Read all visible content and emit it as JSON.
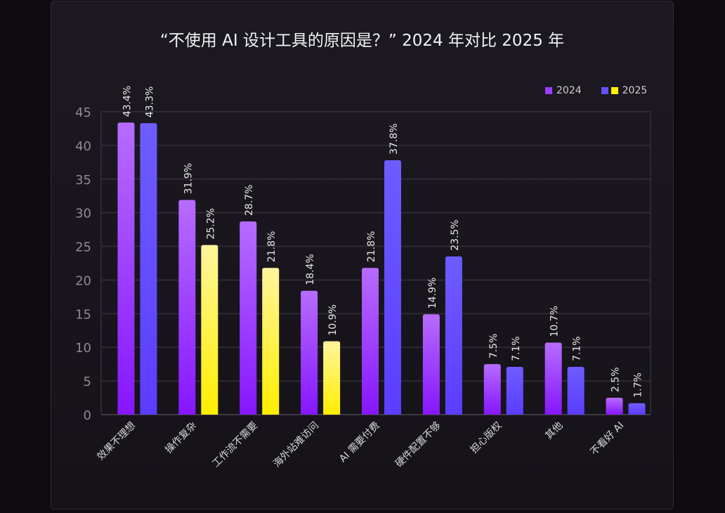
{
  "chart_data": {
    "type": "bar",
    "title": "“不使用 AI 设计工具的原因是？” 2024 年对比 2025 年",
    "categories": [
      "效果不理想",
      "操作复杂",
      "工作流不需要",
      "海外站难访问",
      "AI 需要付费",
      "硬件配置不够",
      "担心版权",
      "其他",
      "不看好 AI"
    ],
    "series": [
      {
        "name": "2024",
        "values": [
          43.4,
          31.9,
          28.7,
          18.4,
          21.8,
          14.9,
          7.5,
          10.7,
          2.5
        ],
        "labels": [
          "43.4%",
          "31.9%",
          "28.7%",
          "18.4%",
          "21.8%",
          "14.9%",
          "7.5%",
          "10.7%",
          "2.5%"
        ]
      },
      {
        "name": "2025",
        "values": [
          43.3,
          25.2,
          21.8,
          10.9,
          37.8,
          23.5,
          7.1,
          7.1,
          1.7
        ],
        "labels": [
          "43.3%",
          "25.2%",
          "21.8%",
          "10.9%",
          "37.8%",
          "23.5%",
          "7.1%",
          "7.1%",
          "1.7%"
        ],
        "highlight": [
          false,
          true,
          true,
          true,
          false,
          false,
          false,
          false,
          false
        ]
      }
    ],
    "ylim": [
      0,
      45
    ],
    "yticks": [
      0,
      5,
      10,
      15,
      20,
      25,
      30,
      35,
      40,
      45
    ],
    "grid": true,
    "legend_position": "top-right",
    "colors": {
      "2024": "#9b3cff",
      "2025": "#6650ff",
      "2025_highlight": "#fff200"
    }
  }
}
